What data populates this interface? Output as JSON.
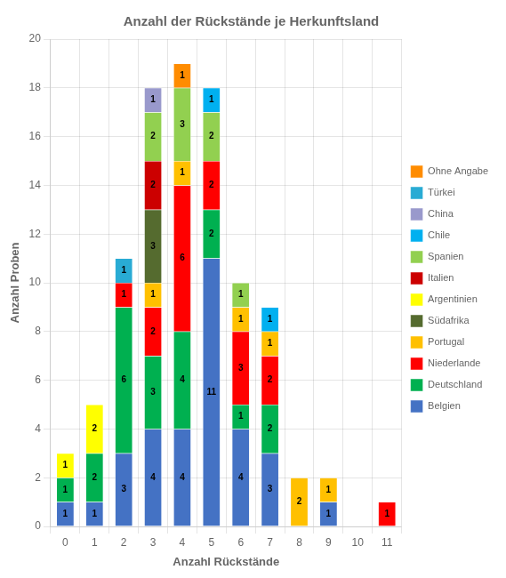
{
  "chart_data": {
    "type": "bar",
    "title": "Anzahl der Rückstände je Herkunftsland",
    "xlabel": "Anzahl Rückstände",
    "ylabel": "Anzahl Proben",
    "categories": [
      0,
      1,
      2,
      3,
      4,
      5,
      6,
      7,
      8,
      9,
      10,
      11
    ],
    "series": [
      {
        "name": "Belgien",
        "color": "#4472C4",
        "values": [
          1,
          1,
          3,
          4,
          4,
          11,
          4,
          3,
          0,
          1,
          0,
          0
        ]
      },
      {
        "name": "Deutschland",
        "color": "#00B050",
        "values": [
          1,
          2,
          6,
          3,
          4,
          2,
          1,
          2,
          0,
          0,
          0,
          0
        ]
      },
      {
        "name": "Niederlande",
        "color": "#FF0000",
        "values": [
          0,
          0,
          1,
          2,
          6,
          2,
          3,
          2,
          0,
          0,
          0,
          1
        ]
      },
      {
        "name": "Portugal",
        "color": "#FFC000",
        "values": [
          0,
          0,
          0,
          1,
          1,
          0,
          1,
          1,
          2,
          1,
          0,
          0
        ]
      },
      {
        "name": "Südafrika",
        "color": "#556B2F",
        "values": [
          0,
          0,
          0,
          3,
          0,
          0,
          0,
          0,
          0,
          0,
          0,
          0
        ]
      },
      {
        "name": "Argentinien",
        "color": "#FFFF00",
        "values": [
          1,
          2,
          0,
          0,
          0,
          0,
          0,
          0,
          0,
          0,
          0,
          0
        ]
      },
      {
        "name": "Italien",
        "color": "#CC0000",
        "values": [
          0,
          0,
          0,
          2,
          0,
          0,
          0,
          0,
          0,
          0,
          0,
          0
        ]
      },
      {
        "name": "Spanien",
        "color": "#92D050",
        "values": [
          0,
          0,
          0,
          2,
          3,
          2,
          1,
          0,
          0,
          0,
          0,
          0
        ]
      },
      {
        "name": "Chile",
        "color": "#00B0F0",
        "values": [
          0,
          0,
          0,
          0,
          0,
          1,
          0,
          1,
          0,
          0,
          0,
          0
        ]
      },
      {
        "name": "China",
        "color": "#9999CC",
        "values": [
          0,
          0,
          0,
          1,
          0,
          0,
          0,
          0,
          0,
          0,
          0,
          0
        ]
      },
      {
        "name": "Türkei",
        "color": "#29ABD4",
        "values": [
          0,
          0,
          1,
          0,
          0,
          0,
          0,
          0,
          0,
          0,
          0,
          0
        ]
      },
      {
        "name": "Ohne Angabe",
        "color": "#FF8C00",
        "values": [
          0,
          0,
          0,
          0,
          1,
          0,
          0,
          0,
          0,
          0,
          0,
          0
        ]
      }
    ],
    "ylim": [
      0,
      20
    ],
    "yticks": [
      0,
      2,
      4,
      6,
      8,
      10,
      12,
      14,
      16,
      18,
      20
    ],
    "stacked": true,
    "data_labels": true,
    "grid": true,
    "legend": "right"
  }
}
